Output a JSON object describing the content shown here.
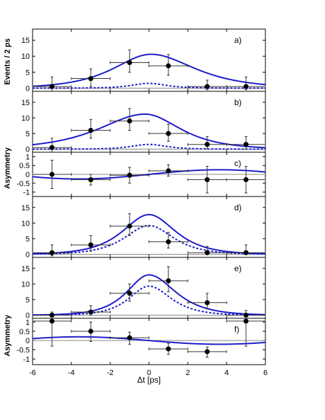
{
  "chart_data": {
    "type": "scatter",
    "xlabel": "Δt [ps]",
    "xlim": [
      -6,
      6
    ],
    "xticks": [
      -6,
      -4,
      -2,
      0,
      2,
      4,
      6
    ],
    "ylabel_events": "Events / 2 ps",
    "ylabel_asym": "Asymmetry",
    "colors": {
      "curve": "#1a1acc",
      "points": "#000000",
      "zero_line": "#888888"
    },
    "panels": [
      {
        "label": "a)",
        "kind": "events",
        "ylim": [
          -1,
          18.5
        ],
        "yticks": [
          0,
          5,
          10,
          15
        ],
        "points": [
          {
            "x": -5,
            "y": 0.5,
            "ylo": 3.0,
            "yhi": 3.0
          },
          {
            "x": -3,
            "y": 3.0,
            "ylo": 2.5,
            "yhi": 3.0
          },
          {
            "x": -1,
            "y": 8.0,
            "ylo": 3.0,
            "yhi": 4.0
          },
          {
            "x": 1,
            "y": 7.0,
            "ylo": 3.0,
            "yhi": 3.5
          },
          {
            "x": 3,
            "y": 0.5,
            "ylo": 1.0,
            "yhi": 2.0
          },
          {
            "x": 5,
            "y": 0.5,
            "ylo": 1.0,
            "yhi": 3.0
          }
        ],
        "curve_total": {
          "amp": 10.6,
          "mu": 0.1,
          "tau_left": 1.7,
          "tau_right": 2.0
        },
        "curve_bkg": {
          "amp": 1.5,
          "mu": 0.0,
          "tau_left": 0.8,
          "tau_right": 0.8
        }
      },
      {
        "label": "b)",
        "kind": "events",
        "ylim": [
          -1,
          18.5
        ],
        "yticks": [
          0,
          5,
          10,
          15
        ],
        "points": [
          {
            "x": -5,
            "y": 0.5,
            "ylo": 2.0,
            "yhi": 3.0
          },
          {
            "x": -3,
            "y": 6.0,
            "ylo": 2.5,
            "yhi": 3.5
          },
          {
            "x": -1,
            "y": 9.0,
            "ylo": 3.0,
            "yhi": 4.0
          },
          {
            "x": 1,
            "y": 5.0,
            "ylo": 2.5,
            "yhi": 3.0
          },
          {
            "x": 3,
            "y": 1.5,
            "ylo": 1.5,
            "yhi": 2.5
          },
          {
            "x": 5,
            "y": 1.5,
            "ylo": 1.5,
            "yhi": 2.5
          }
        ],
        "curve_total": {
          "amp": 11.2,
          "mu": -0.2,
          "tau_left": 2.1,
          "tau_right": 1.6
        },
        "curve_bkg": {
          "amp": 1.5,
          "mu": 0.0,
          "tau_left": 0.8,
          "tau_right": 0.8
        }
      },
      {
        "label": "c)",
        "kind": "asym",
        "ylim": [
          -1.25,
          1.25
        ],
        "yticks": [
          1,
          0.5,
          0,
          -0.5,
          -1
        ],
        "ytick_labels": [
          "1",
          "0.5",
          "0",
          "-0.5",
          "-1"
        ],
        "points": [
          {
            "x": -5,
            "y": 0.0,
            "ylo": 0.8,
            "yhi": 0.8
          },
          {
            "x": -3,
            "y": -0.3,
            "ylo": 0.3,
            "yhi": 0.3
          },
          {
            "x": -1,
            "y": -0.05,
            "ylo": 0.45,
            "yhi": 0.45
          },
          {
            "x": 1,
            "y": 0.2,
            "ylo": 0.3,
            "yhi": 0.35
          },
          {
            "x": 3,
            "y": -0.3,
            "ylo": 0.75,
            "yhi": 0.75
          },
          {
            "x": 5,
            "y": -0.3,
            "ylo": 0.75,
            "yhi": 0.75
          }
        ],
        "curve_asym": {
          "amp": 0.26,
          "period": 14.5,
          "phase": 0.0
        }
      },
      {
        "label": "d)",
        "kind": "events",
        "ylim": [
          -1,
          18.5
        ],
        "yticks": [
          0,
          5,
          10,
          15
        ],
        "points": [
          {
            "x": -5,
            "y": 0.5,
            "ylo": 1.0,
            "yhi": 2.5
          },
          {
            "x": -3,
            "y": 3.0,
            "ylo": 2.0,
            "yhi": 3.0
          },
          {
            "x": -1,
            "y": 9.0,
            "ylo": 3.0,
            "yhi": 4.0
          },
          {
            "x": 1,
            "y": 4.0,
            "ylo": 2.0,
            "yhi": 3.0
          },
          {
            "x": 3,
            "y": 0.5,
            "ylo": 0.5,
            "yhi": 2.0
          },
          {
            "x": 5,
            "y": 0.5,
            "ylo": 0.5,
            "yhi": 2.5
          }
        ],
        "curve_total": {
          "amp": 12.7,
          "mu": 0.0,
          "tau_left": 1.2,
          "tau_right": 1.2
        },
        "curve_bkg": {
          "amp": 9.2,
          "mu": 0.0,
          "tau_left": 1.1,
          "tau_right": 1.1
        }
      },
      {
        "label": "e)",
        "kind": "events",
        "ylim": [
          -1,
          18.5
        ],
        "yticks": [
          0,
          5,
          10,
          15
        ],
        "points": [
          {
            "x": -5,
            "y": 0.0,
            "ylo": 0.5,
            "yhi": 1.0
          },
          {
            "x": -3,
            "y": 1.0,
            "ylo": 1.0,
            "yhi": 2.0
          },
          {
            "x": -1,
            "y": 7.0,
            "ylo": 2.5,
            "yhi": 3.0
          },
          {
            "x": 1,
            "y": 11.0,
            "ylo": 3.5,
            "yhi": 4.5
          },
          {
            "x": 3,
            "y": 4.0,
            "ylo": 2.0,
            "yhi": 3.0
          },
          {
            "x": 5,
            "y": 0.0,
            "ylo": 0.5,
            "yhi": 1.5
          }
        ],
        "curve_total": {
          "amp": 12.9,
          "mu": 0.0,
          "tau_left": 1.0,
          "tau_right": 1.2
        },
        "curve_bkg": {
          "amp": 9.3,
          "mu": 0.0,
          "tau_left": 0.9,
          "tau_right": 1.0
        }
      },
      {
        "label": "f)",
        "kind": "asym",
        "ylim": [
          -1.3,
          1.2
        ],
        "yticks": [
          1,
          0.5,
          0,
          -0.5,
          -1
        ],
        "ytick_labels": [
          "1",
          "0.5",
          "0",
          "-0.5",
          "-1"
        ],
        "points": [
          {
            "x": -5,
            "y": 1.05,
            "ylo": 1.35,
            "yhi": 0.2
          },
          {
            "x": -3,
            "y": 0.5,
            "ylo": 0.55,
            "yhi": 0.5
          },
          {
            "x": -1,
            "y": 0.15,
            "ylo": 0.35,
            "yhi": 0.3
          },
          {
            "x": 1,
            "y": -0.45,
            "ylo": 0.3,
            "yhi": 0.3
          },
          {
            "x": 3,
            "y": -0.6,
            "ylo": 0.3,
            "yhi": 0.25
          },
          {
            "x": 5,
            "y": 1.05,
            "ylo": 1.35,
            "yhi": 0.2
          }
        ],
        "curve_asym": {
          "amp": -0.2,
          "period": 14.5,
          "phase": 0.0
        }
      }
    ]
  }
}
